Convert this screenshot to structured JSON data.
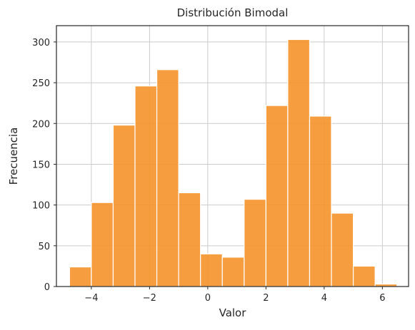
{
  "chart_data": {
    "type": "bar",
    "title": "Distribución Bimodal",
    "xlabel": "Valor",
    "ylabel": "Frecuencia",
    "bin_edges": [
      -4.75,
      -4.0,
      -3.25,
      -2.5,
      -1.75,
      -1.0,
      -0.25,
      0.5,
      1.25,
      2.0,
      2.75,
      3.5,
      4.25,
      5.0,
      5.75,
      6.5
    ],
    "values": [
      24,
      103,
      198,
      246,
      266,
      115,
      40,
      36,
      107,
      222,
      303,
      209,
      90,
      25,
      3
    ],
    "xlim": [
      -5.2,
      6.9
    ],
    "ylim": [
      0,
      320
    ],
    "xticks": [
      -4,
      -2,
      0,
      2,
      4,
      6
    ],
    "xtick_labels": [
      "−4",
      "−2",
      "0",
      "2",
      "4",
      "6"
    ],
    "yticks": [
      0,
      50,
      100,
      150,
      200,
      250,
      300
    ],
    "ytick_labels": [
      "0",
      "50",
      "100",
      "150",
      "200",
      "250",
      "300"
    ],
    "grid": true,
    "bar_color": "#f5932a"
  }
}
